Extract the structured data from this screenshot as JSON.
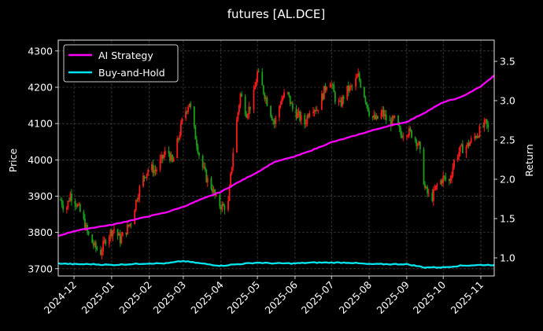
{
  "chart_data": {
    "type": "line",
    "title": "futures [AL.DCE]",
    "xlabel": "",
    "ylabel": "Price",
    "y2label": "Return",
    "ylim": [
      3680,
      4330
    ],
    "y2lim": [
      0.77,
      3.77
    ],
    "yticks": [
      3700,
      3800,
      3900,
      4000,
      4100,
      4200,
      4300
    ],
    "y2ticks": [
      1.0,
      1.5,
      2.0,
      2.5,
      3.0,
      3.5
    ],
    "x_start": "2024-11-18",
    "x_end": "2025-11-12",
    "xticks": [
      "2024-12",
      "2025-01",
      "2025-02",
      "2025-03",
      "2025-04",
      "2025-05",
      "2025-06",
      "2025-07",
      "2025-08",
      "2025-09",
      "2025-10",
      "2025-11"
    ],
    "grid": true,
    "legend_position": "upper-left",
    "colors": {
      "background": "#000000",
      "ai_strategy": "#ff00ff",
      "buy_and_hold": "#00e5ee",
      "candle_up": "#ff1a1a",
      "candle_down": "#1aa01a",
      "grid": "#555555",
      "text": "#ffffff"
    },
    "candles": {
      "up_color": "#ff1a1a",
      "down_color": "#1aa01a",
      "points": [
        [
          "2024-11-20",
          3890
        ],
        [
          "2024-11-24",
          3860
        ],
        [
          "2024-11-28",
          3905
        ],
        [
          "2024-12-03",
          3880
        ],
        [
          "2024-12-08",
          3840
        ],
        [
          "2024-12-13",
          3790
        ],
        [
          "2024-12-18",
          3760
        ],
        [
          "2024-12-23",
          3745
        ],
        [
          "2024-12-28",
          3790
        ],
        [
          "2025-01-03",
          3810
        ],
        [
          "2025-01-08",
          3780
        ],
        [
          "2025-01-12",
          3800
        ],
        [
          "2025-01-17",
          3830
        ],
        [
          "2025-01-22",
          3900
        ],
        [
          "2025-01-27",
          3950
        ],
        [
          "2025-02-01",
          3980
        ],
        [
          "2025-02-06",
          3970
        ],
        [
          "2025-02-11",
          4000
        ],
        [
          "2025-02-16",
          4030
        ],
        [
          "2025-02-20",
          3990
        ],
        [
          "2025-02-25",
          4060
        ],
        [
          "2025-03-01",
          4120
        ],
        [
          "2025-03-06",
          4160
        ],
        [
          "2025-03-10",
          4080
        ],
        [
          "2025-03-15",
          4000
        ],
        [
          "2025-03-20",
          3950
        ],
        [
          "2025-03-25",
          3920
        ],
        [
          "2025-03-29",
          3880
        ],
        [
          "2025-04-03",
          3870
        ],
        [
          "2025-04-07",
          3880
        ],
        [
          "2025-04-12",
          4060
        ],
        [
          "2025-04-17",
          4180
        ],
        [
          "2025-04-22",
          4130
        ],
        [
          "2025-04-27",
          4160
        ],
        [
          "2025-05-01",
          4240
        ],
        [
          "2025-05-05",
          4200
        ],
        [
          "2025-05-10",
          4150
        ],
        [
          "2025-05-15",
          4100
        ],
        [
          "2025-05-20",
          4160
        ],
        [
          "2025-05-25",
          4190
        ],
        [
          "2025-05-30",
          4140
        ],
        [
          "2025-06-04",
          4120
        ],
        [
          "2025-06-09",
          4100
        ],
        [
          "2025-06-14",
          4150
        ],
        [
          "2025-06-19",
          4140
        ],
        [
          "2025-06-24",
          4180
        ],
        [
          "2025-06-29",
          4230
        ],
        [
          "2025-07-04",
          4170
        ],
        [
          "2025-07-08",
          4150
        ],
        [
          "2025-07-13",
          4190
        ],
        [
          "2025-07-18",
          4200
        ],
        [
          "2025-07-23",
          4230
        ],
        [
          "2025-07-28",
          4180
        ],
        [
          "2025-08-02",
          4120
        ],
        [
          "2025-08-07",
          4110
        ],
        [
          "2025-08-12",
          4130
        ],
        [
          "2025-08-17",
          4100
        ],
        [
          "2025-08-22",
          4110
        ],
        [
          "2025-08-27",
          4070
        ],
        [
          "2025-09-01",
          4080
        ],
        [
          "2025-09-06",
          4070
        ],
        [
          "2025-09-11",
          4040
        ],
        [
          "2025-09-16",
          3920
        ],
        [
          "2025-09-21",
          3890
        ],
        [
          "2025-09-26",
          3930
        ],
        [
          "2025-10-01",
          3950
        ],
        [
          "2025-10-06",
          3940
        ],
        [
          "2025-10-11",
          4010
        ],
        [
          "2025-10-16",
          4030
        ],
        [
          "2025-10-21",
          4040
        ],
        [
          "2025-10-26",
          4060
        ],
        [
          "2025-10-31",
          4080
        ],
        [
          "2025-11-05",
          4100
        ],
        [
          "2025-11-10",
          4060
        ]
      ]
    },
    "series": [
      {
        "name": "AI Strategy",
        "axis": "right",
        "points": [
          [
            "2024-11-18",
            1.28
          ],
          [
            "2024-12-01",
            1.34
          ],
          [
            "2024-12-15",
            1.38
          ],
          [
            "2025-01-01",
            1.42
          ],
          [
            "2025-01-15",
            1.47
          ],
          [
            "2025-02-01",
            1.53
          ],
          [
            "2025-02-15",
            1.58
          ],
          [
            "2025-03-01",
            1.65
          ],
          [
            "2025-03-15",
            1.74
          ],
          [
            "2025-04-01",
            1.84
          ],
          [
            "2025-04-15",
            1.96
          ],
          [
            "2025-05-01",
            2.09
          ],
          [
            "2025-05-15",
            2.22
          ],
          [
            "2025-06-01",
            2.29
          ],
          [
            "2025-06-15",
            2.37
          ],
          [
            "2025-07-01",
            2.47
          ],
          [
            "2025-07-15",
            2.53
          ],
          [
            "2025-08-01",
            2.61
          ],
          [
            "2025-08-15",
            2.67
          ],
          [
            "2025-09-01",
            2.73
          ],
          [
            "2025-09-15",
            2.84
          ],
          [
            "2025-10-01",
            2.98
          ],
          [
            "2025-10-15",
            3.04
          ],
          [
            "2025-11-01",
            3.18
          ],
          [
            "2025-11-12",
            3.32
          ]
        ]
      },
      {
        "name": "Buy-and-Hold",
        "axis": "right",
        "points": [
          [
            "2024-11-18",
            0.93
          ],
          [
            "2024-12-01",
            0.92
          ],
          [
            "2024-12-15",
            0.92
          ],
          [
            "2025-01-01",
            0.91
          ],
          [
            "2025-01-15",
            0.92
          ],
          [
            "2025-02-01",
            0.93
          ],
          [
            "2025-02-15",
            0.93
          ],
          [
            "2025-03-01",
            0.96
          ],
          [
            "2025-03-15",
            0.93
          ],
          [
            "2025-04-01",
            0.9
          ],
          [
            "2025-04-15",
            0.92
          ],
          [
            "2025-05-01",
            0.94
          ],
          [
            "2025-05-15",
            0.93
          ],
          [
            "2025-06-01",
            0.93
          ],
          [
            "2025-06-15",
            0.94
          ],
          [
            "2025-07-01",
            0.94
          ],
          [
            "2025-07-15",
            0.94
          ],
          [
            "2025-08-01",
            0.92
          ],
          [
            "2025-08-15",
            0.92
          ],
          [
            "2025-09-01",
            0.92
          ],
          [
            "2025-09-15",
            0.88
          ],
          [
            "2025-10-01",
            0.88
          ],
          [
            "2025-10-15",
            0.9
          ],
          [
            "2025-11-01",
            0.91
          ],
          [
            "2025-11-12",
            0.91
          ]
        ]
      }
    ]
  }
}
